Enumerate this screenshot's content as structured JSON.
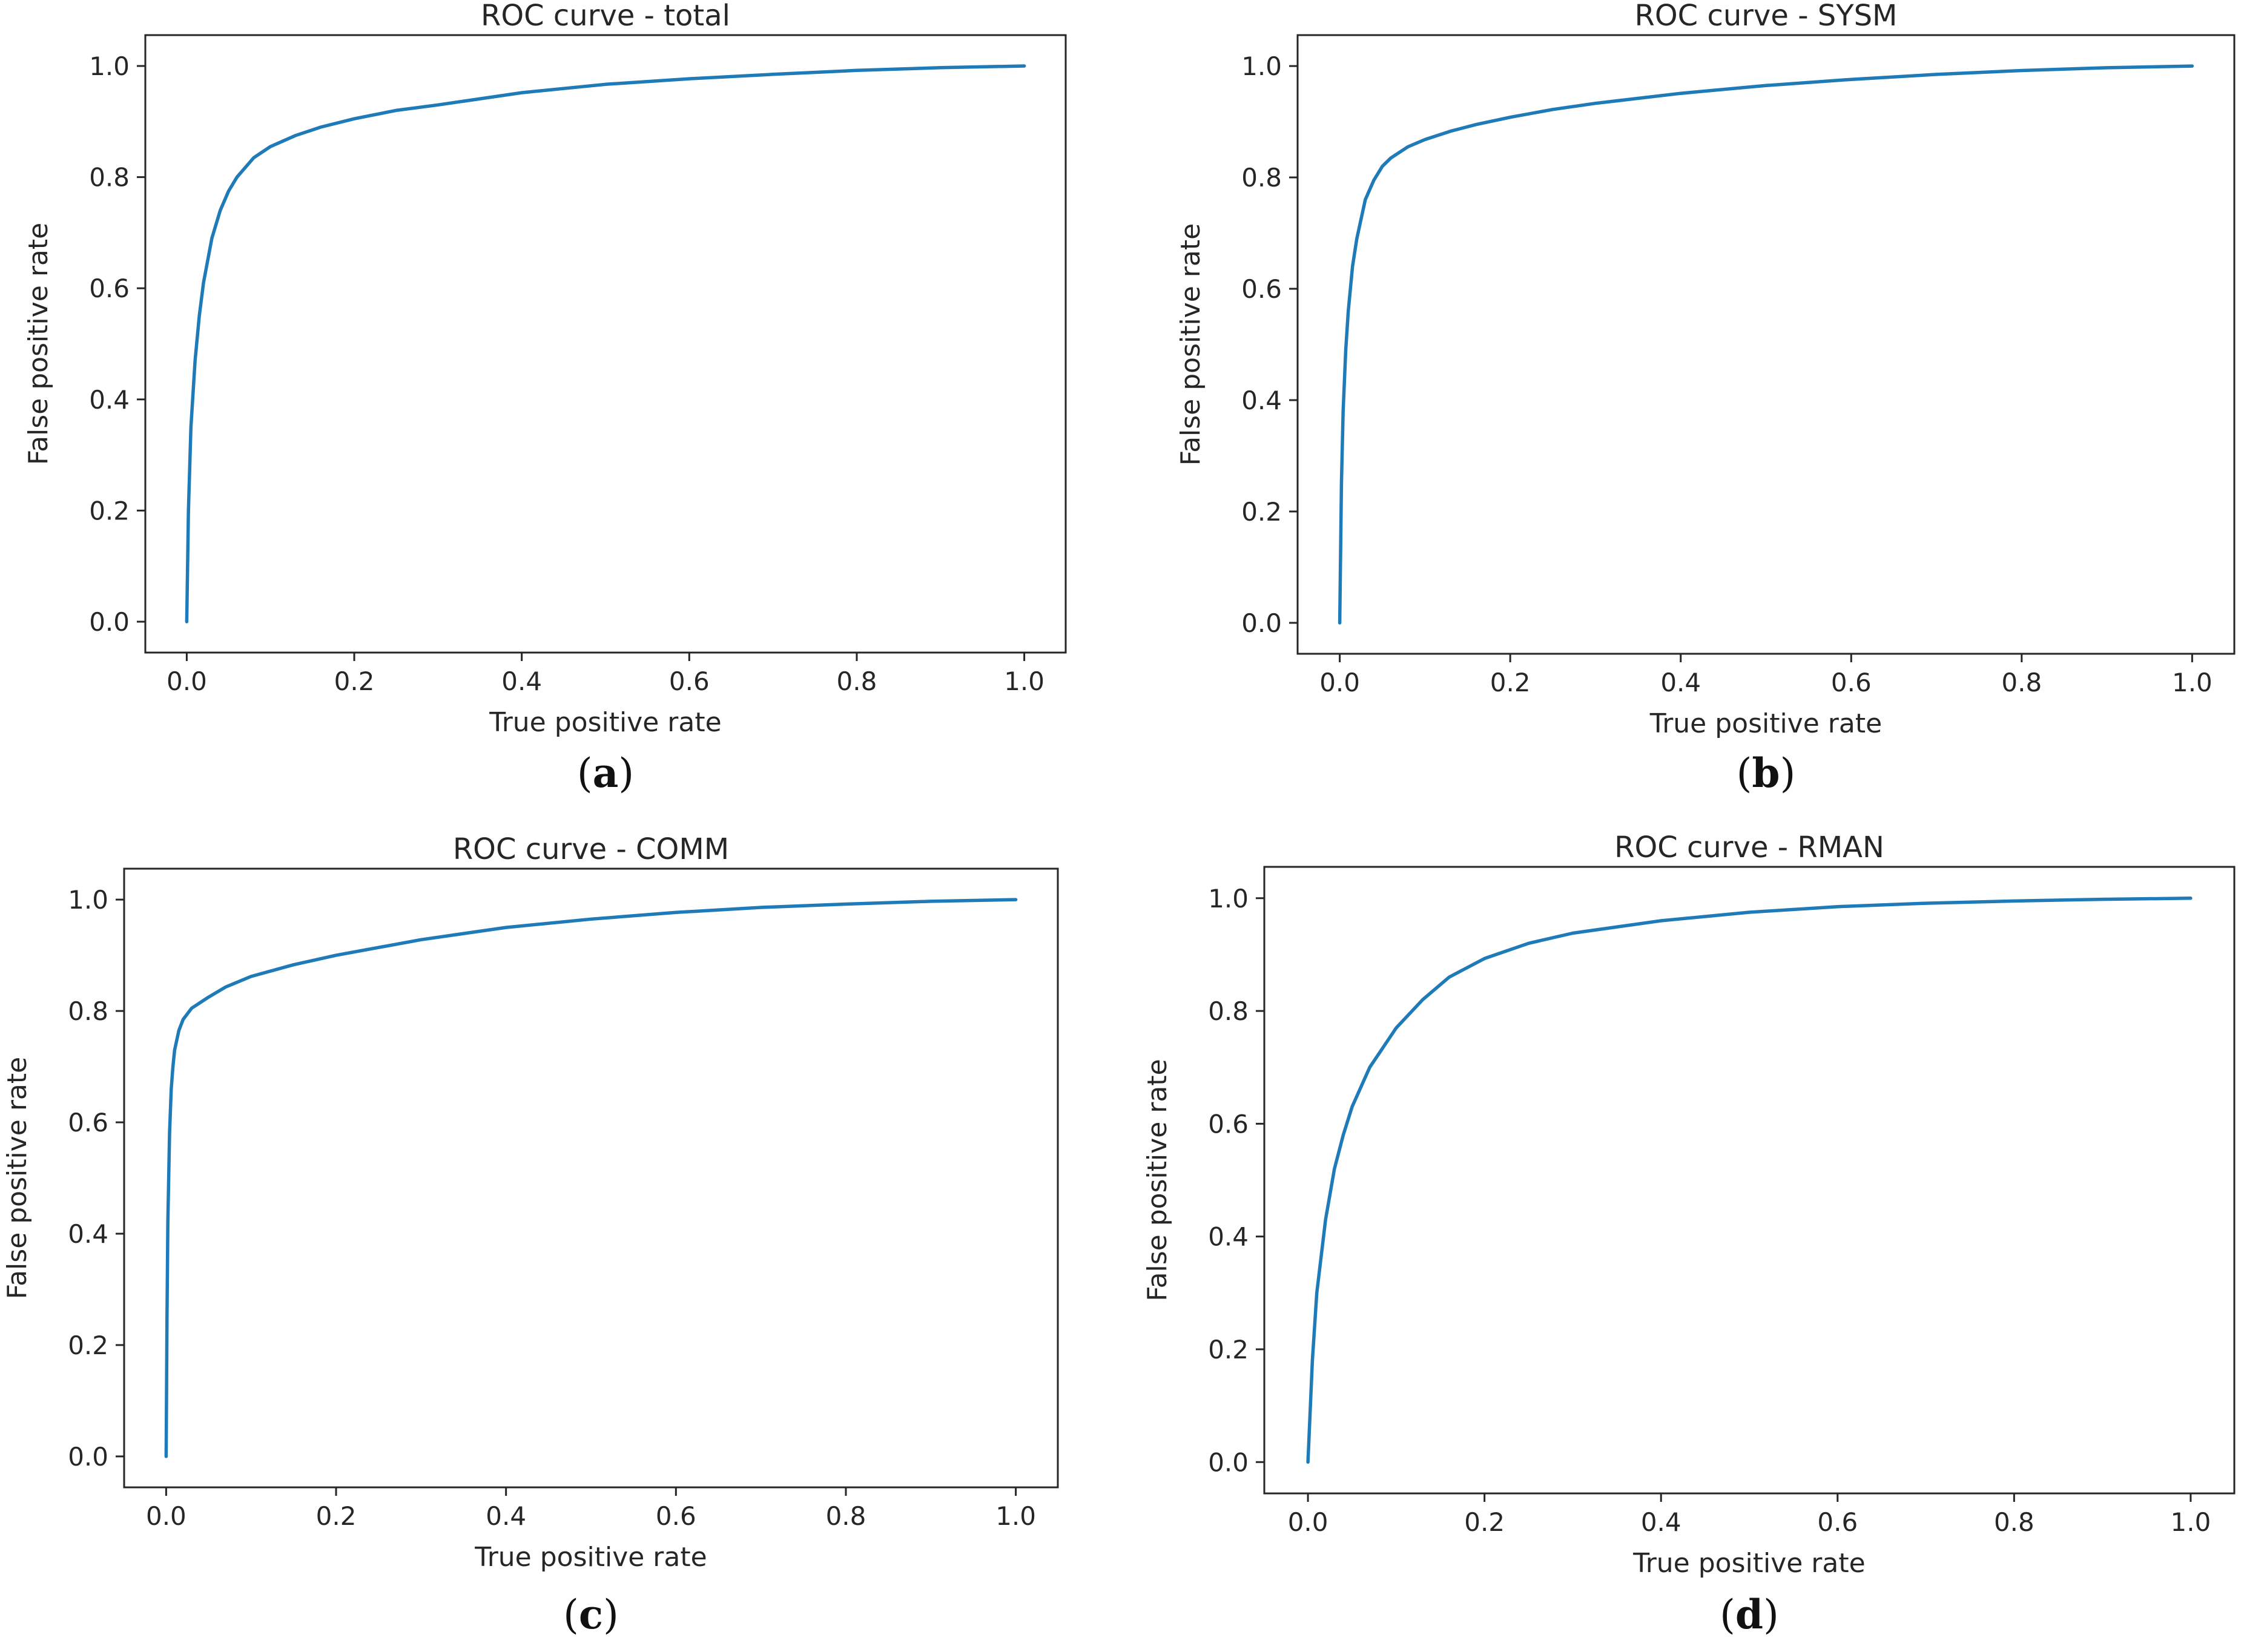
{
  "chart_data": [
    {
      "type": "line",
      "title": "ROC curve - total",
      "xlabel": "True positive rate",
      "ylabel": "False positive rate",
      "caption_letter": "a",
      "xlim": [
        0,
        1
      ],
      "ylim": [
        0,
        1
      ],
      "xticks": [
        "0.0",
        "0.2",
        "0.4",
        "0.6",
        "0.8",
        "1.0"
      ],
      "yticks": [
        "0.0",
        "0.2",
        "0.4",
        "0.6",
        "0.8",
        "1.0"
      ],
      "grid": false,
      "series": [
        {
          "name": "ROC",
          "color": "#1f7ab8",
          "x": [
            0,
            0.002,
            0.005,
            0.01,
            0.015,
            0.02,
            0.03,
            0.04,
            0.05,
            0.06,
            0.08,
            0.1,
            0.13,
            0.16,
            0.2,
            0.25,
            0.3,
            0.4,
            0.5,
            0.6,
            0.7,
            0.8,
            0.9,
            1.0
          ],
          "y": [
            0,
            0.2,
            0.35,
            0.47,
            0.55,
            0.61,
            0.69,
            0.74,
            0.775,
            0.8,
            0.835,
            0.855,
            0.875,
            0.89,
            0.905,
            0.92,
            0.93,
            0.952,
            0.967,
            0.977,
            0.985,
            0.992,
            0.997,
            1.0
          ]
        }
      ]
    },
    {
      "type": "line",
      "title": "ROC curve - SYSM",
      "xlabel": "True positive rate",
      "ylabel": "False positive rate",
      "caption_letter": "b",
      "xlim": [
        0,
        1
      ],
      "ylim": [
        0,
        1
      ],
      "xticks": [
        "0.0",
        "0.2",
        "0.4",
        "0.6",
        "0.8",
        "1.0"
      ],
      "yticks": [
        "0.0",
        "0.2",
        "0.4",
        "0.6",
        "0.8",
        "1.0"
      ],
      "grid": false,
      "series": [
        {
          "name": "ROC",
          "color": "#1f7ab8",
          "x": [
            0,
            0.002,
            0.004,
            0.007,
            0.01,
            0.015,
            0.02,
            0.03,
            0.04,
            0.05,
            0.06,
            0.08,
            0.1,
            0.13,
            0.16,
            0.2,
            0.25,
            0.3,
            0.4,
            0.5,
            0.6,
            0.7,
            0.8,
            0.9,
            1.0
          ],
          "y": [
            0,
            0.25,
            0.38,
            0.49,
            0.56,
            0.64,
            0.69,
            0.76,
            0.795,
            0.82,
            0.835,
            0.855,
            0.868,
            0.883,
            0.895,
            0.908,
            0.922,
            0.933,
            0.951,
            0.965,
            0.976,
            0.985,
            0.992,
            0.997,
            1.0
          ]
        }
      ]
    },
    {
      "type": "line",
      "title": "ROC curve - COMM",
      "xlabel": "True positive rate",
      "ylabel": "False positive rate",
      "caption_letter": "c",
      "xlim": [
        0,
        1
      ],
      "ylim": [
        0,
        1
      ],
      "xticks": [
        "0.0",
        "0.2",
        "0.4",
        "0.6",
        "0.8",
        "1.0"
      ],
      "yticks": [
        "0.0",
        "0.2",
        "0.4",
        "0.6",
        "0.8",
        "1.0"
      ],
      "grid": false,
      "series": [
        {
          "name": "ROC",
          "color": "#1f7ab8",
          "x": [
            0,
            0.001,
            0.002,
            0.004,
            0.006,
            0.008,
            0.01,
            0.015,
            0.02,
            0.03,
            0.04,
            0.05,
            0.07,
            0.1,
            0.15,
            0.2,
            0.3,
            0.4,
            0.5,
            0.6,
            0.7,
            0.8,
            0.9,
            1.0
          ],
          "y": [
            0,
            0.25,
            0.42,
            0.58,
            0.66,
            0.7,
            0.73,
            0.765,
            0.785,
            0.805,
            0.815,
            0.825,
            0.843,
            0.862,
            0.883,
            0.9,
            0.928,
            0.95,
            0.965,
            0.977,
            0.986,
            0.992,
            0.997,
            1.0
          ]
        }
      ]
    },
    {
      "type": "line",
      "title": "ROC curve - RMAN",
      "xlabel": "True positive rate",
      "ylabel": "False positive rate",
      "caption_letter": "d",
      "xlim": [
        0,
        1
      ],
      "ylim": [
        0,
        1
      ],
      "xticks": [
        "0.0",
        "0.2",
        "0.4",
        "0.6",
        "0.8",
        "1.0"
      ],
      "yticks": [
        "0.0",
        "0.2",
        "0.4",
        "0.6",
        "0.8",
        "1.0"
      ],
      "grid": false,
      "series": [
        {
          "name": "ROC",
          "color": "#1f7ab8",
          "x": [
            0,
            0.005,
            0.01,
            0.02,
            0.03,
            0.04,
            0.05,
            0.07,
            0.1,
            0.13,
            0.16,
            0.2,
            0.25,
            0.3,
            0.4,
            0.5,
            0.6,
            0.7,
            0.8,
            0.9,
            1.0
          ],
          "y": [
            0,
            0.18,
            0.3,
            0.43,
            0.52,
            0.58,
            0.63,
            0.7,
            0.77,
            0.82,
            0.86,
            0.893,
            0.92,
            0.938,
            0.96,
            0.975,
            0.985,
            0.991,
            0.995,
            0.998,
            1.0
          ]
        }
      ]
    }
  ]
}
